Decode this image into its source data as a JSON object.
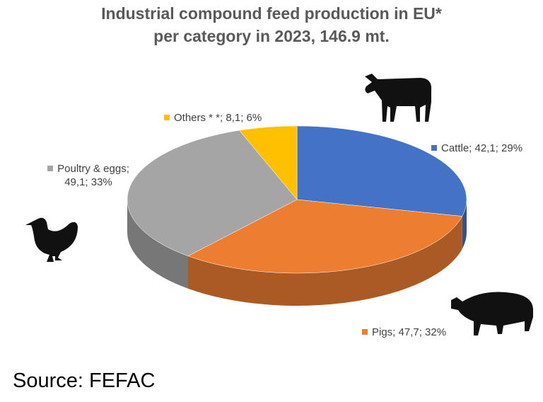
{
  "chart_data": {
    "type": "pie",
    "title": "Industrial compound feed production in EU*",
    "subtitle": "per category in 2023, 146.9 mt.",
    "values": [
      42.1,
      47.7,
      49.1,
      8.1
    ],
    "value_labels": [
      "Cattle; 42,1; 29%",
      "Pigs; 47,7; 32%",
      "Poultry & eggs; 49,1; 33%",
      "Others * *; 8,1; 6%"
    ],
    "colors": [
      "#4472c4",
      "#ed7d31",
      "#a5a5a5",
      "#ffc000"
    ],
    "source": "Source: FEFAC"
  }
}
